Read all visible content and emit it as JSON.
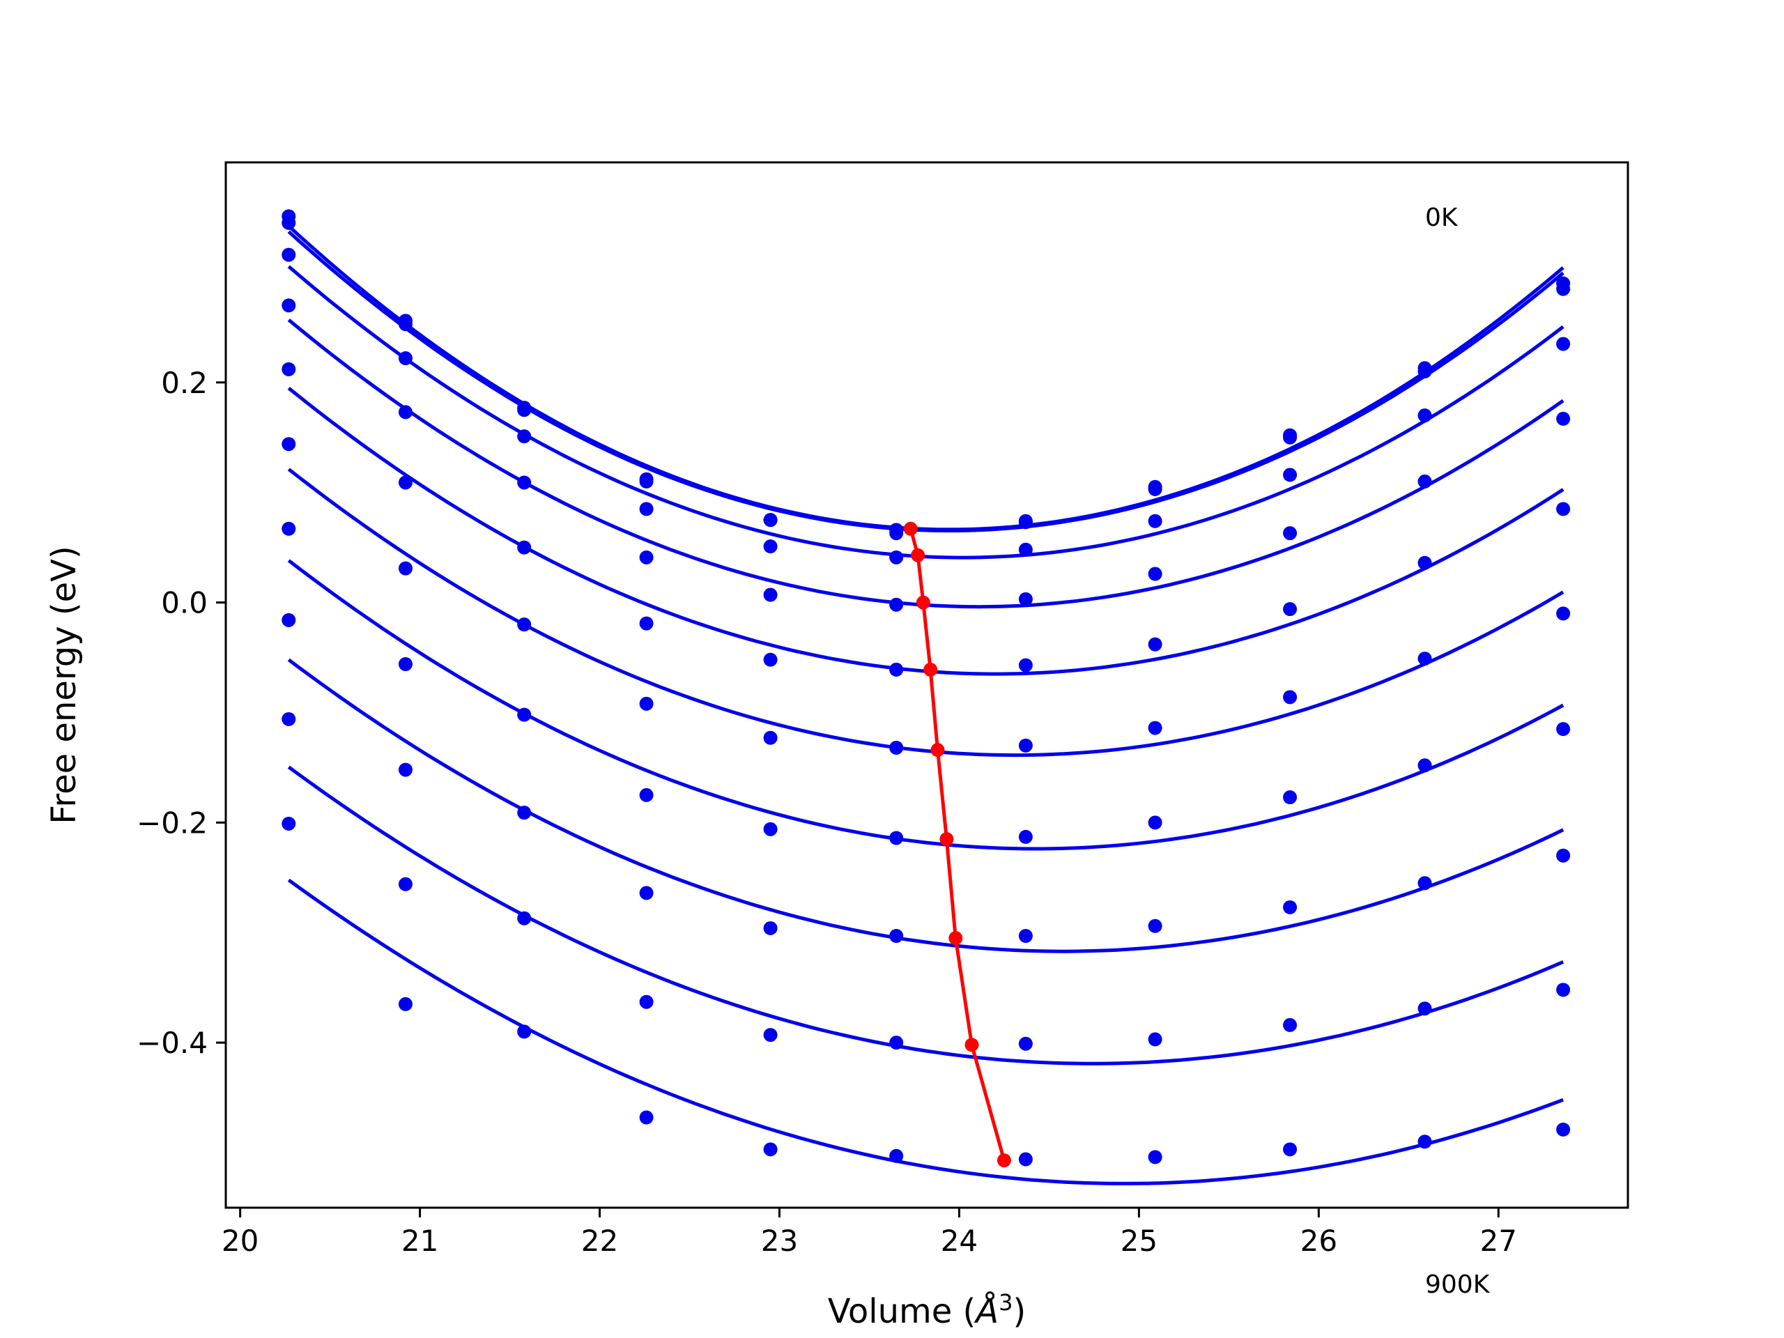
{
  "chart_data": {
    "type": "line",
    "xlabel": "Volume (",
    "xlabel_unit": "Å",
    "xlabel_exp": "3",
    "xlabel_close": ")",
    "ylabel": "Free energy (eV)",
    "xlim": [
      19.92,
      27.72
    ],
    "ylim": [
      -0.55,
      0.4
    ],
    "x_ticks": [
      20,
      21,
      22,
      23,
      24,
      25,
      26,
      27
    ],
    "y_ticks": [
      -0.4,
      -0.2,
      0.0,
      0.2
    ],
    "x_tick_labels": [
      "20",
      "21",
      "22",
      "23",
      "24",
      "25",
      "26",
      "27"
    ],
    "y_tick_labels": [
      "−0.4",
      "−0.2",
      "0.0",
      "0.2"
    ],
    "annotations": {
      "top": "0K",
      "bottom": "900K"
    },
    "grid": false,
    "colors": {
      "curves": "#0000ee",
      "minima": "#ff0000",
      "axes": "#000000"
    },
    "volumes": [
      20.27,
      20.92,
      21.58,
      22.26,
      22.95,
      23.65,
      24.37,
      25.09,
      25.84,
      26.59,
      27.36
    ],
    "series": [
      {
        "energies": [
          0.351,
          0.256,
          0.177,
          0.112,
          0.075,
          0.066,
          0.074,
          0.105,
          0.152,
          0.213,
          0.29
        ]
      },
      {
        "energies": [
          0.345,
          0.253,
          0.175,
          0.11,
          0.075,
          0.063,
          0.073,
          0.103,
          0.15,
          0.21,
          0.285
        ]
      },
      {
        "energies": [
          0.316,
          0.222,
          0.151,
          0.085,
          0.051,
          0.041,
          0.048,
          0.074,
          0.116,
          0.17,
          0.235
        ]
      },
      {
        "energies": [
          0.27,
          0.173,
          0.109,
          0.041,
          0.007,
          -0.002,
          0.003,
          0.026,
          0.063,
          0.11,
          0.167
        ]
      },
      {
        "energies": [
          0.212,
          0.109,
          0.05,
          -0.019,
          -0.052,
          -0.061,
          -0.057,
          -0.038,
          -0.006,
          0.036,
          0.085
        ]
      },
      {
        "energies": [
          0.144,
          0.031,
          -0.02,
          -0.092,
          -0.123,
          -0.132,
          -0.13,
          -0.114,
          -0.086,
          -0.051,
          -0.01
        ]
      },
      {
        "energies": [
          0.067,
          -0.056,
          -0.102,
          -0.175,
          -0.206,
          -0.214,
          -0.213,
          -0.2,
          -0.177,
          -0.148,
          -0.115
        ]
      },
      {
        "energies": [
          -0.016,
          -0.152,
          -0.191,
          -0.264,
          -0.296,
          -0.303,
          -0.303,
          -0.294,
          -0.277,
          -0.255,
          -0.23
        ]
      },
      {
        "energies": [
          -0.106,
          -0.256,
          -0.287,
          -0.363,
          -0.393,
          -0.4,
          -0.401,
          -0.397,
          -0.384,
          -0.369,
          -0.352
        ]
      },
      {
        "energies": [
          -0.201,
          -0.365,
          -0.39,
          -0.468,
          -0.497,
          -0.503,
          -0.506,
          -0.504,
          -0.497,
          -0.49,
          -0.479
        ]
      }
    ],
    "minima": {
      "x": [
        23.73,
        23.77,
        23.8,
        23.84,
        23.88,
        23.93,
        23.98,
        24.07,
        24.25
      ],
      "y": [
        0.067,
        0.043,
        0.0,
        -0.061,
        -0.134,
        -0.215,
        -0.305,
        -0.402,
        -0.507
      ]
    }
  }
}
